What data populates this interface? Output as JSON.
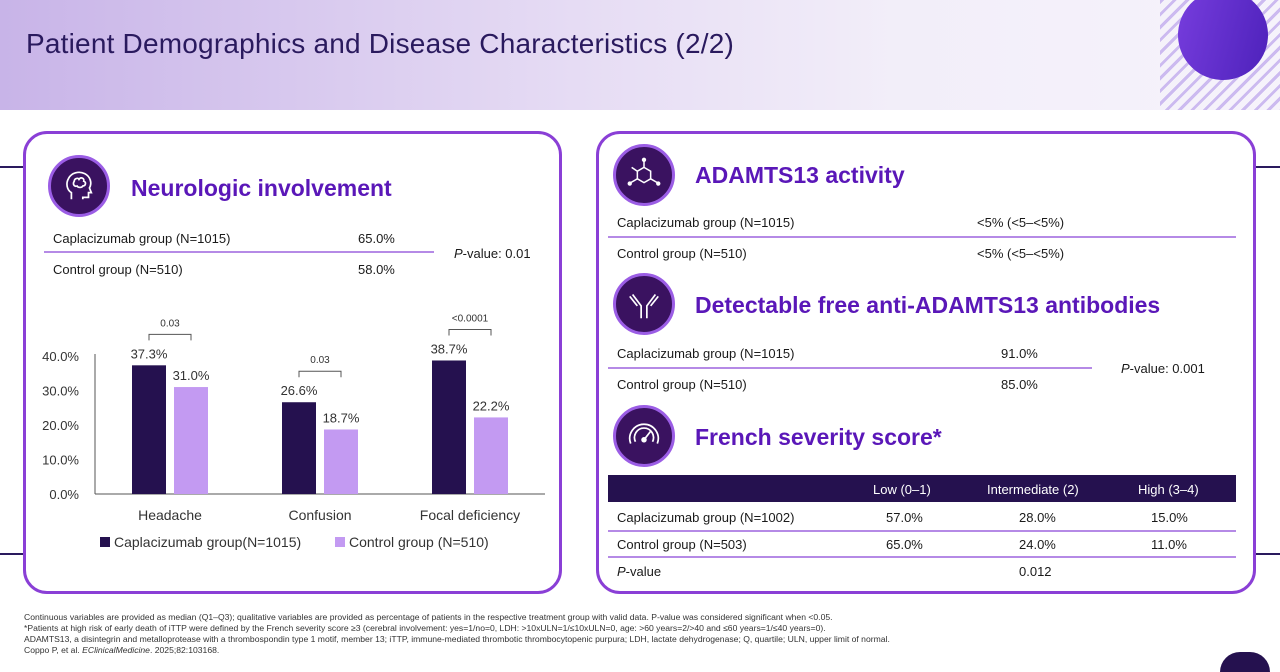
{
  "title": "Patient Demographics and Disease Characteristics (2/2)",
  "neurologic": {
    "heading": "Neurologic involvement",
    "rows": [
      {
        "label": "Caplacizumab group (N=1015)",
        "value": "65.0%"
      },
      {
        "label": "Control group (N=510)",
        "value": "58.0%"
      }
    ],
    "pvalue_prefix": "P",
    "pvalue_text": "-value: 0.01"
  },
  "chart_data": {
    "type": "bar",
    "categories": [
      "Headache",
      "Confusion",
      "Focal deficiency"
    ],
    "series": [
      {
        "name": "Caplacizumab group(N=1015)",
        "values": [
          37.3,
          26.6,
          38.7
        ],
        "labels": [
          "37.3%",
          "26.6%",
          "38.7%"
        ],
        "color": "#25114f"
      },
      {
        "name": "Control group (N=510)",
        "values": [
          31.0,
          18.7,
          22.2
        ],
        "labels": [
          "31.0%",
          "18.7%",
          "22.2%"
        ],
        "color": "#c39af2"
      }
    ],
    "ylim": [
      0,
      40
    ],
    "yticks": [
      "40.0%",
      "30.0%",
      "20.0%",
      "10.0%",
      "0.0%"
    ],
    "pvalues": [
      "0.03",
      "0.03",
      "<0.0001"
    ],
    "xlabel": "",
    "ylabel": ""
  },
  "adamts": {
    "heading": "ADAMTS13 activity",
    "rows": [
      {
        "label": "Caplacizumab group (N=1015)",
        "value": "<5% (<5–<5%)"
      },
      {
        "label": "Control group (N=510)",
        "value": "<5% (<5–<5%)"
      }
    ]
  },
  "antibodies": {
    "heading": "Detectable free anti-ADAMTS13 antibodies",
    "rows": [
      {
        "label": "Caplacizumab group (N=1015)",
        "value": "91.0%"
      },
      {
        "label": "Control group (N=510)",
        "value": "85.0%"
      }
    ],
    "pvalue_prefix": "P",
    "pvalue_text": "-value: 0.001"
  },
  "french": {
    "heading": "French severity score*",
    "columns": [
      "Low (0–1)",
      "Intermediate (2)",
      "High (3–4)"
    ],
    "rows": [
      {
        "label": "Caplacizumab group (N=1002)",
        "values": [
          "57.0%",
          "28.0%",
          "15.0%"
        ]
      },
      {
        "label": "Control group (N=503)",
        "values": [
          "65.0%",
          "24.0%",
          "11.0%"
        ]
      }
    ],
    "pvalue_prefix": "P",
    "pvalue_suffix": "-value",
    "pvalue": "0.012"
  },
  "footer": {
    "line1": "Continuous variables are provided as median (Q1–Q3); qualitative variables are provided as percentage of patients in the respective treatment group with valid data. P-value was considered significant when <0.05.",
    "line2": "*Patients at high risk of early death of iTTP were defined by the French severity score ≥3 (cerebral involvement: yes=1/no=0, LDH: >10xULN=1/≤10xULN=0, age: >60 years=2/>40 and ≤60 years=1/≤40 years=0).",
    "line3": "ADAMTS13, a disintegrin and metalloprotease with a thrombospondin type 1 motif, member 13; iTTP, immune-mediated thrombotic thrombocytopenic purpura; LDH, lactate dehydrogenase; Q, quartile; ULN, upper limit of normal.",
    "line4_prefix": "Coppo P, et al. ",
    "line4_journal": "EClinicalMedicine",
    "line4_suffix": ". 2025;82:103168."
  },
  "icons": [
    "brain-head-icon",
    "molecule-icon",
    "antibody-icon",
    "gauge-icon"
  ],
  "colors": {
    "accent": "#8a3fd6",
    "heading": "#5a17b8",
    "dark": "#25114f",
    "light_series": "#c39af2"
  }
}
